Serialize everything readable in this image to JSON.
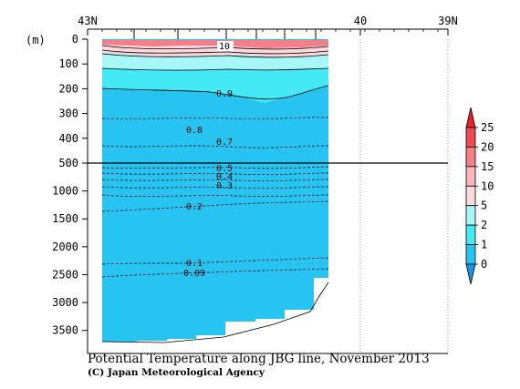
{
  "chart_data": {
    "type": "heatmap",
    "title": "Potential Temperature along JBG line, November 2013",
    "credit": "(C) Japan Meteorological Agency",
    "ylabel": "(m)",
    "x_ticks": [
      "43N",
      "40",
      "39N"
    ],
    "y_ticks_upper": [
      "0",
      "100",
      "200",
      "300",
      "400",
      "500"
    ],
    "y_ticks_lower": [
      "1000",
      "1500",
      "2000",
      "2500",
      "3000",
      "3500"
    ],
    "y_break": 500,
    "colorbar": {
      "levels": [
        "25",
        "20",
        "15",
        "10",
        "5",
        "2",
        "1",
        "0"
      ],
      "colors": [
        "#e8202e",
        "#f04a54",
        "#f57f88",
        "#f9b7bd",
        "#fdd8dc",
        "#a8f7f7",
        "#44e9f5",
        "#27c4f2",
        "#1995e6"
      ]
    },
    "contour_labels": [
      "10",
      "0.9",
      "0.8",
      "0.7",
      "0.5",
      "0.4",
      "0.3",
      "0.2",
      "0.1",
      "0.09"
    ]
  }
}
